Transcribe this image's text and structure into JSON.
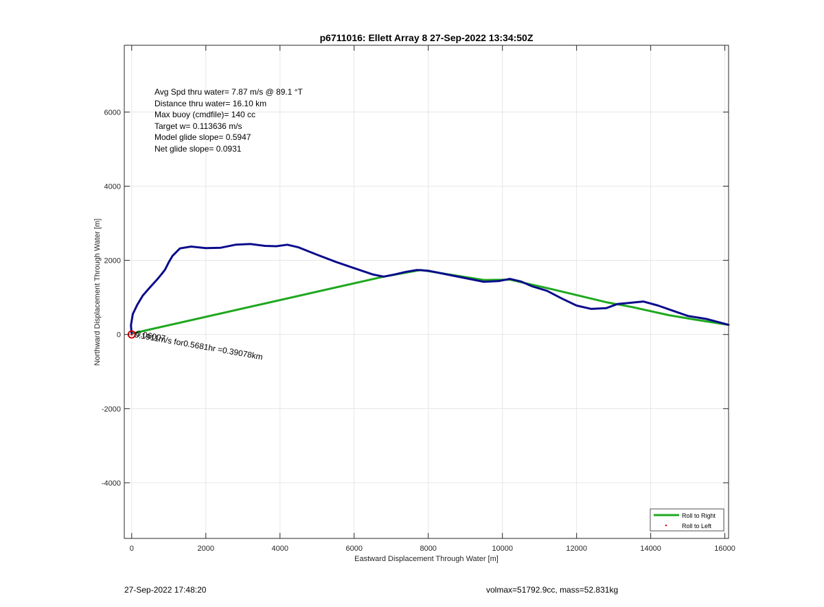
{
  "chart_data": {
    "type": "line",
    "title": "p6711016: Ellett Array 8 27-Sep-2022 13:34:50Z",
    "xlabel": "Eastward Displacement Through Water [m]",
    "ylabel": "Northward Displacement Through Water [m]",
    "xlim": [
      -200,
      16100
    ],
    "ylim": [
      -5500,
      7800
    ],
    "xticks": [
      0,
      2000,
      4000,
      6000,
      8000,
      10000,
      12000,
      14000,
      16000
    ],
    "yticks": [
      -4000,
      -2000,
      0,
      2000,
      4000,
      6000
    ],
    "grid": true,
    "legend_placement": "bottom-right",
    "legend": [
      {
        "label": "Roll to Right",
        "marker": "line",
        "color": "#1ea81e"
      },
      {
        "label": "Roll to Left",
        "marker": "dot",
        "color": "#e01010"
      }
    ],
    "series": [
      {
        "color": "#1ea81e",
        "x": [
          30,
          6800,
          7800,
          9500,
          10200,
          11300,
          12800,
          13500,
          14500,
          15200,
          16100
        ],
        "y": [
          30,
          1560,
          1740,
          1470,
          1480,
          1230,
          870,
          740,
          520,
          400,
          260
        ]
      },
      {
        "color": "#0a0a8c",
        "x": [
          0,
          -20,
          30,
          150,
          300,
          500,
          700,
          800,
          900,
          1000,
          1100,
          1300,
          1600,
          2000,
          2400,
          2800,
          3200,
          3600,
          3900,
          4200,
          4500,
          5000,
          5500,
          6000,
          6500,
          6800,
          7100,
          7400,
          7700,
          8000,
          8500,
          9000,
          9500,
          9900,
          10200,
          10500,
          10800,
          11200,
          11600,
          12000,
          12400,
          12800,
          13100,
          13400,
          13800,
          14200,
          14600,
          15000,
          15500,
          16100
        ],
        "y": [
          0,
          250,
          550,
          800,
          1050,
          1280,
          1500,
          1620,
          1750,
          1950,
          2120,
          2320,
          2370,
          2330,
          2340,
          2420,
          2440,
          2390,
          2380,
          2420,
          2350,
          2150,
          1960,
          1790,
          1620,
          1560,
          1620,
          1690,
          1740,
          1720,
          1620,
          1520,
          1420,
          1440,
          1500,
          1430,
          1300,
          1180,
          970,
          780,
          690,
          710,
          820,
          850,
          890,
          780,
          640,
          500,
          420,
          260
        ]
      }
    ],
    "start_marker": {
      "x": 0,
      "y": 0,
      "color": "#cc0000",
      "label": "Roll to Left"
    },
    "current_annotation": {
      "text": "0.1911m/s for0.5681hr =0.39078km",
      "overlap_text": "0.06007",
      "anchor_x": 100,
      "anchor_y": 0,
      "rotation_deg": 10
    },
    "stats_text": [
      "Avg Spd thru water=  7.87 m/s @  89.1 °T",
      "Distance thru water= 16.10 km",
      "Max buoy (cmdfile)= 140 cc",
      "Target w= 0.113636 m/s",
      "Model glide slope= 0.5947",
      "Net glide slope= 0.0931"
    ]
  },
  "footer": {
    "timestamp": "27-Sep-2022 17:48:20",
    "volmax": "volmax=51792.9cc, mass=52.831kg"
  }
}
